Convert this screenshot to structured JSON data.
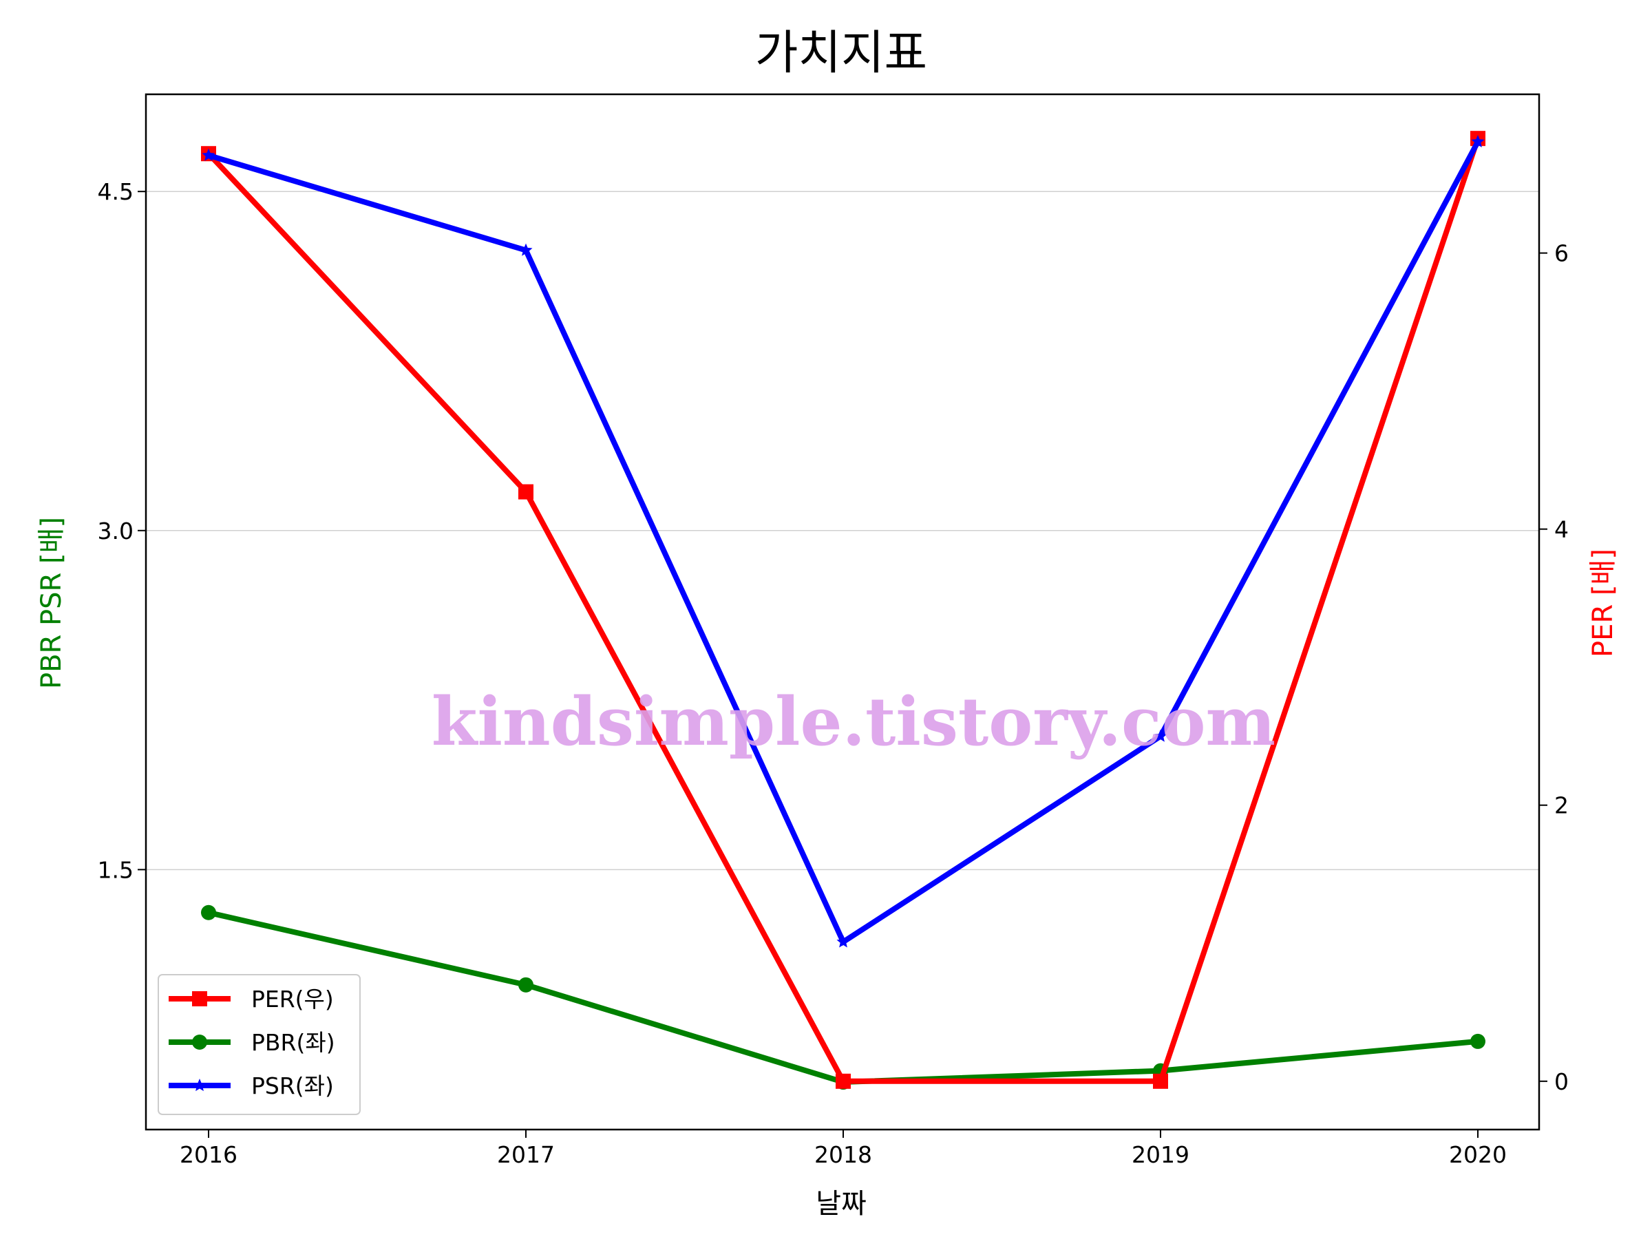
{
  "chart_data": {
    "type": "line",
    "title": "가치지표",
    "xlabel": "날짜",
    "ylabel_left": "PBR PSR [배]",
    "ylabel_right": "PER [배]",
    "categories": [
      "2016",
      "2017",
      "2018",
      "2019",
      "2020"
    ],
    "ylim_left": [
      0.35,
      4.93
    ],
    "ylim_right": [
      -0.35,
      7.15
    ],
    "yticks_left": [
      "1.5",
      "3.0",
      "4.5"
    ],
    "yticks_right": [
      "0",
      "2",
      "4",
      "6"
    ],
    "grid": "horizontal (left axis)",
    "legend_position": "lower-left",
    "series": [
      {
        "name": "PER(우)",
        "axis": "right",
        "color": "#ff0000",
        "marker": "square",
        "values": [
          6.72,
          4.27,
          0.0,
          0.0,
          6.83
        ]
      },
      {
        "name": "PBR(좌)",
        "axis": "left",
        "color": "#008000",
        "marker": "circle",
        "values": [
          1.31,
          0.99,
          0.56,
          0.61,
          0.74
        ]
      },
      {
        "name": "PSR(좌)",
        "axis": "left",
        "color": "#0000ff",
        "marker": "star",
        "values": [
          4.66,
          4.24,
          1.18,
          2.09,
          4.72
        ]
      }
    ]
  },
  "watermark": "kindsimple.tistory.com"
}
